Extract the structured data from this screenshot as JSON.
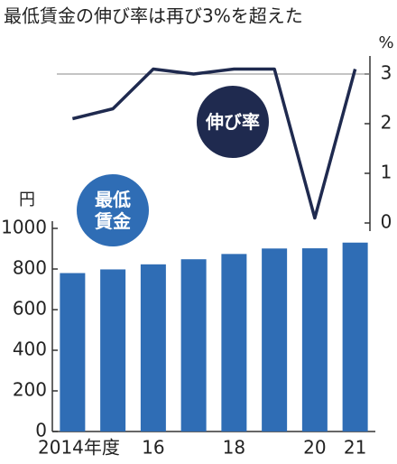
{
  "chart_data": {
    "type": "bar",
    "title": "最低賃金の伸び率は再び3%を超えた",
    "categories": [
      "2014年度",
      null,
      "16",
      null,
      "18",
      null,
      "20",
      "21"
    ],
    "series": [
      {
        "name": "最低賃金",
        "type": "bar",
        "color": "#2f6db5",
        "values": [
          780,
          798,
          823,
          848,
          874,
          901,
          902,
          930
        ]
      },
      {
        "name": "伸び率",
        "type": "line",
        "axis": "y2",
        "color": "#1f2a4f",
        "values": [
          2.1,
          2.3,
          3.1,
          3.0,
          3.1,
          3.1,
          0.1,
          3.1
        ]
      }
    ],
    "y_unit": "円",
    "ylim": [
      0,
      1000
    ],
    "yticks": [
      0,
      200,
      400,
      600,
      800,
      1000
    ],
    "y2_unit": "%",
    "y2lim": [
      0,
      3
    ],
    "y2ticks": [
      0,
      1,
      2,
      3
    ]
  }
}
